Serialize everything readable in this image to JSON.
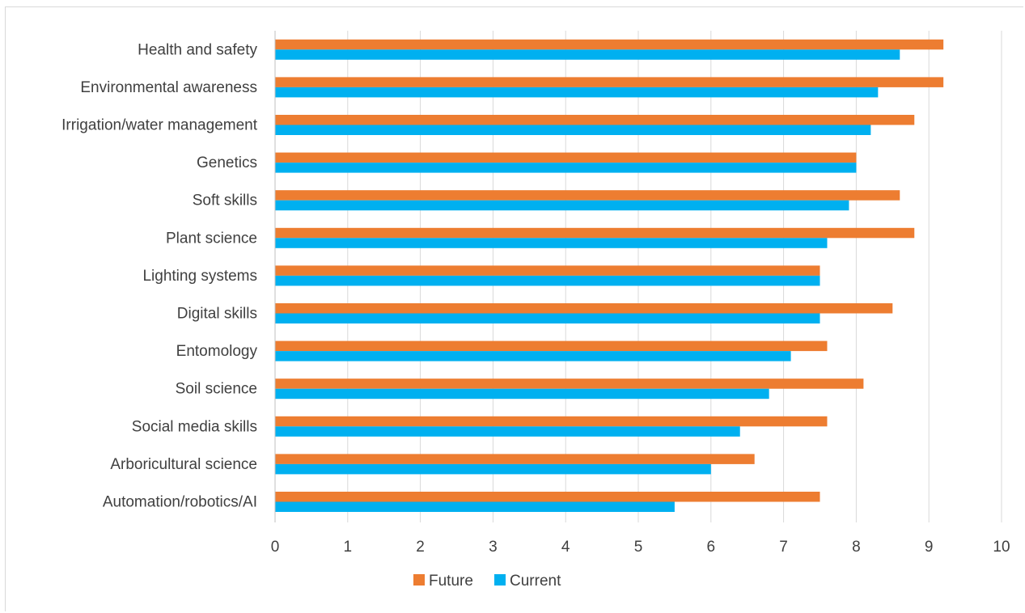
{
  "chart_data": {
    "type": "bar",
    "orientation": "horizontal",
    "categories": [
      "Health and safety",
      "Environmental awareness",
      "Irrigation/water management",
      "Genetics",
      "Soft skills",
      "Plant science",
      "Lighting systems",
      "Digital skills",
      "Entomology",
      "Soil science",
      "Social media skills",
      "Arboricultural science",
      "Automation/robotics/AI"
    ],
    "series": [
      {
        "name": "Future",
        "color": "#ED7D31",
        "values": [
          9.2,
          9.2,
          8.8,
          8.0,
          8.6,
          8.8,
          7.5,
          8.5,
          7.6,
          8.1,
          7.6,
          6.6,
          7.5
        ]
      },
      {
        "name": "Current",
        "color": "#00B0F0",
        "values": [
          8.6,
          8.3,
          8.2,
          8.0,
          7.9,
          7.6,
          7.5,
          7.5,
          7.1,
          6.8,
          6.4,
          6.0,
          5.5
        ]
      }
    ],
    "xlim": [
      0,
      10
    ],
    "x_ticks": [
      "0",
      "1",
      "2",
      "3",
      "4",
      "5",
      "6",
      "7",
      "8",
      "9",
      "10"
    ],
    "grid": "vertical",
    "legend": "bottom",
    "title": "",
    "xlabel": "",
    "ylabel": ""
  }
}
